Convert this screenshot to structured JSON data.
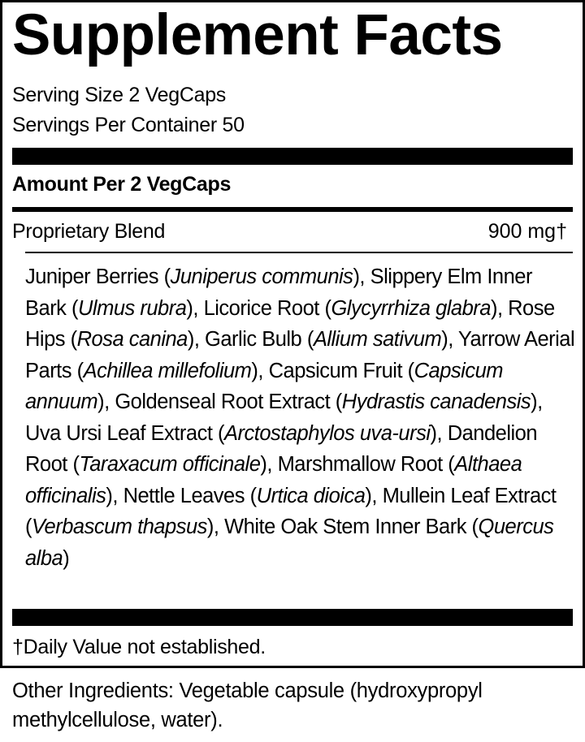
{
  "title": "Supplement Facts",
  "serving_size": "Serving Size 2 VegCaps",
  "servings_per_container": "Servings Per Container 50",
  "amount_header": "Amount Per 2 VegCaps",
  "blend": {
    "name": "Proprietary Blend",
    "amount": "900 mg†"
  },
  "ingredients": [
    {
      "name": "Juniper Berries",
      "latin": "Juniperus communis"
    },
    {
      "name": "Slippery Elm Inner Bark",
      "latin": "Ulmus rubra"
    },
    {
      "name": "Licorice Root",
      "latin": "Glycyrrhiza glabra"
    },
    {
      "name": "Rose Hips",
      "latin": "Rosa canina"
    },
    {
      "name": "Garlic Bulb",
      "latin": "Allium sativum"
    },
    {
      "name": "Yarrow Aerial Parts",
      "latin": "Achillea millefolium"
    },
    {
      "name": "Capsicum Fruit",
      "latin": "Capsicum annuum"
    },
    {
      "name": "Goldenseal Root Extract",
      "latin": "Hydrastis canadensis"
    },
    {
      "name": "Uva Ursi Leaf Extract",
      "latin": "Arctostaphylos uva-ursi"
    },
    {
      "name": "Dandelion Root",
      "latin": "Taraxacum officinale"
    },
    {
      "name": "Marshmallow Root",
      "latin": "Althaea officinalis"
    },
    {
      "name": "Nettle Leaves",
      "latin": "Urtica dioica"
    },
    {
      "name": "Mullein Leaf Extract",
      "latin": "Verbascum thapsus"
    },
    {
      "name": "White Oak Stem Inner Bark",
      "latin": "Quercus alba"
    }
  ],
  "footnote": "†Daily Value not established.",
  "other_ingredients": "Other Ingredients: Vegetable capsule (hydroxypropyl methylcellulose, water)."
}
